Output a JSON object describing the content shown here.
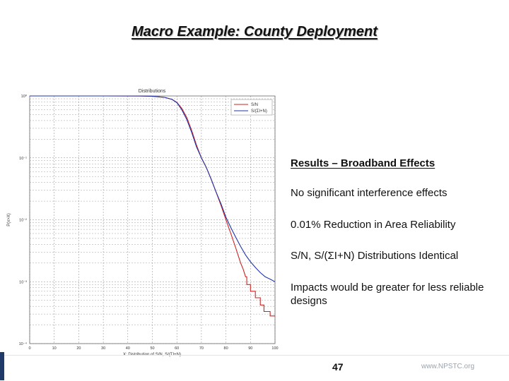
{
  "slide": {
    "title": "Macro Example: County Deployment",
    "page_number": "47",
    "footer_url": "www.NPSTC.org"
  },
  "results": {
    "heading": "Results – Broadband Effects",
    "items": [
      "No significant interference effects",
      "0.01% Reduction in Area Reliability",
      "S/N, S/(ΣI+N) Distributions Identical",
      "Impacts would be greater for less reliable designs"
    ]
  },
  "chart_data": {
    "type": "line",
    "title": "Distributions",
    "xlabel": "X: Distribution of S/N, S/(ΣI+N)",
    "ylabel": "P(x>X)",
    "xlim": [
      0,
      100
    ],
    "ylim": [
      0.0001,
      1
    ],
    "y_scale": "log",
    "x_ticks": [
      0,
      10,
      20,
      30,
      40,
      50,
      60,
      70,
      80,
      90,
      100
    ],
    "y_ticks": [
      {
        "value": 1,
        "label": "10⁰"
      },
      {
        "value": 0.1,
        "label": "10⁻¹"
      },
      {
        "value": 0.01,
        "label": "10⁻²"
      },
      {
        "value": 0.001,
        "label": "10⁻³"
      },
      {
        "value": 0.0001,
        "label": "10⁻⁴"
      }
    ],
    "grid": true,
    "legend_position": "top-right",
    "series": [
      {
        "name": "S/N",
        "color": "#cc2222",
        "points": [
          [
            0,
            1
          ],
          [
            30,
            1
          ],
          [
            45,
            0.998
          ],
          [
            50,
            0.99
          ],
          [
            55,
            0.95
          ],
          [
            58,
            0.88
          ],
          [
            60,
            0.79
          ],
          [
            62,
            0.63
          ],
          [
            64,
            0.45
          ],
          [
            66,
            0.28
          ],
          [
            68,
            0.16
          ],
          [
            70,
            0.1
          ],
          [
            72,
            0.07
          ],
          [
            74,
            0.045
          ],
          [
            76,
            0.028
          ],
          [
            78,
            0.017
          ],
          [
            80,
            0.01
          ],
          [
            82,
            0.006
          ],
          [
            84,
            0.0035
          ],
          [
            86,
            0.002
          ],
          [
            87,
            0.0016
          ],
          [
            88,
            0.0012
          ],
          [
            88.5,
            0.0012
          ],
          [
            88.5,
            0.0009
          ],
          [
            90,
            0.0009
          ],
          [
            90,
            0.0007
          ],
          [
            92,
            0.0007
          ],
          [
            92,
            0.00055
          ],
          [
            94,
            0.00055
          ],
          [
            94,
            0.00042
          ],
          [
            95.5,
            0.00042
          ],
          [
            95.5,
            0.00033
          ],
          [
            98,
            0.00033
          ],
          [
            98,
            0.00028
          ],
          [
            100,
            0.00028
          ]
        ]
      },
      {
        "name": "S/(ΣI+N)",
        "color": "#2233aa",
        "points": [
          [
            0,
            1
          ],
          [
            30,
            1
          ],
          [
            45,
            0.998
          ],
          [
            50,
            0.99
          ],
          [
            55,
            0.95
          ],
          [
            58,
            0.88
          ],
          [
            60,
            0.78
          ],
          [
            62,
            0.6
          ],
          [
            64,
            0.42
          ],
          [
            66,
            0.26
          ],
          [
            68,
            0.15
          ],
          [
            70,
            0.1
          ],
          [
            72,
            0.07
          ],
          [
            74,
            0.045
          ],
          [
            76,
            0.028
          ],
          [
            78,
            0.018
          ],
          [
            80,
            0.011
          ],
          [
            82,
            0.0075
          ],
          [
            84,
            0.0052
          ],
          [
            86,
            0.0037
          ],
          [
            88,
            0.0027
          ],
          [
            90,
            0.0021
          ],
          [
            92,
            0.0017
          ],
          [
            94,
            0.0014
          ],
          [
            96,
            0.0012
          ],
          [
            98,
            0.0011
          ],
          [
            100,
            0.001
          ]
        ]
      }
    ]
  }
}
